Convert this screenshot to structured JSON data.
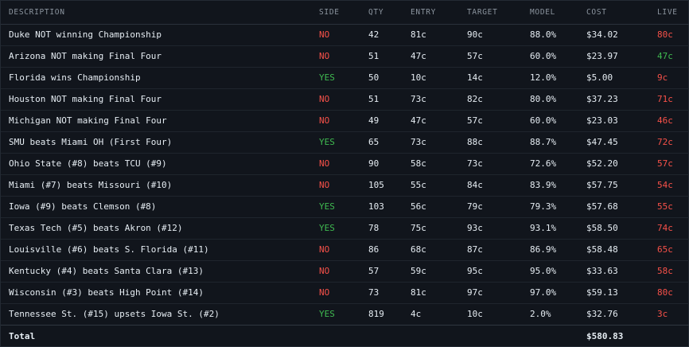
{
  "columns": {
    "description": "DESCRIPTION",
    "side": "SIDE",
    "qty": "QTY",
    "entry": "ENTRY",
    "target": "TARGET",
    "model": "MODEL",
    "cost": "COST",
    "live": "LIVE"
  },
  "colors": {
    "no": "#f85149",
    "yes": "#3fb950",
    "live_down": "#f85149",
    "live_up": "#3fb950"
  },
  "rows": [
    {
      "description": "Duke NOT winning Championship",
      "side": "NO",
      "qty": "42",
      "entry": "81c",
      "target": "90c",
      "model": "88.0%",
      "cost": "$34.02",
      "live": "80c",
      "live_trend": "down"
    },
    {
      "description": "Arizona NOT making Final Four",
      "side": "NO",
      "qty": "51",
      "entry": "47c",
      "target": "57c",
      "model": "60.0%",
      "cost": "$23.97",
      "live": "47c",
      "live_trend": "up"
    },
    {
      "description": "Florida wins Championship",
      "side": "YES",
      "qty": "50",
      "entry": "10c",
      "target": "14c",
      "model": "12.0%",
      "cost": "$5.00",
      "live": "9c",
      "live_trend": "down"
    },
    {
      "description": "Houston NOT making Final Four",
      "side": "NO",
      "qty": "51",
      "entry": "73c",
      "target": "82c",
      "model": "80.0%",
      "cost": "$37.23",
      "live": "71c",
      "live_trend": "down"
    },
    {
      "description": "Michigan NOT making Final Four",
      "side": "NO",
      "qty": "49",
      "entry": "47c",
      "target": "57c",
      "model": "60.0%",
      "cost": "$23.03",
      "live": "46c",
      "live_trend": "down"
    },
    {
      "description": "SMU beats Miami OH (First Four)",
      "side": "YES",
      "qty": "65",
      "entry": "73c",
      "target": "88c",
      "model": "88.7%",
      "cost": "$47.45",
      "live": "72c",
      "live_trend": "down"
    },
    {
      "description": "Ohio State (#8) beats TCU (#9)",
      "side": "NO",
      "qty": "90",
      "entry": "58c",
      "target": "73c",
      "model": "72.6%",
      "cost": "$52.20",
      "live": "57c",
      "live_trend": "down"
    },
    {
      "description": "Miami (#7) beats Missouri (#10)",
      "side": "NO",
      "qty": "105",
      "entry": "55c",
      "target": "84c",
      "model": "83.9%",
      "cost": "$57.75",
      "live": "54c",
      "live_trend": "down"
    },
    {
      "description": "Iowa (#9) beats Clemson (#8)",
      "side": "YES",
      "qty": "103",
      "entry": "56c",
      "target": "79c",
      "model": "79.3%",
      "cost": "$57.68",
      "live": "55c",
      "live_trend": "down"
    },
    {
      "description": "Texas Tech (#5) beats Akron (#12)",
      "side": "YES",
      "qty": "78",
      "entry": "75c",
      "target": "93c",
      "model": "93.1%",
      "cost": "$58.50",
      "live": "74c",
      "live_trend": "down"
    },
    {
      "description": "Louisville (#6) beats S. Florida (#11)",
      "side": "NO",
      "qty": "86",
      "entry": "68c",
      "target": "87c",
      "model": "86.9%",
      "cost": "$58.48",
      "live": "65c",
      "live_trend": "down"
    },
    {
      "description": "Kentucky (#4) beats Santa Clara (#13)",
      "side": "NO",
      "qty": "57",
      "entry": "59c",
      "target": "95c",
      "model": "95.0%",
      "cost": "$33.63",
      "live": "58c",
      "live_trend": "down"
    },
    {
      "description": "Wisconsin (#3) beats High Point (#14)",
      "side": "NO",
      "qty": "73",
      "entry": "81c",
      "target": "97c",
      "model": "97.0%",
      "cost": "$59.13",
      "live": "80c",
      "live_trend": "down"
    },
    {
      "description": "Tennessee St. (#15) upsets Iowa St. (#2)",
      "side": "YES",
      "qty": "819",
      "entry": "4c",
      "target": "10c",
      "model": "2.0%",
      "cost": "$32.76",
      "live": "3c",
      "live_trend": "down"
    }
  ],
  "footer": {
    "label": "Total",
    "cost": "$580.83"
  }
}
